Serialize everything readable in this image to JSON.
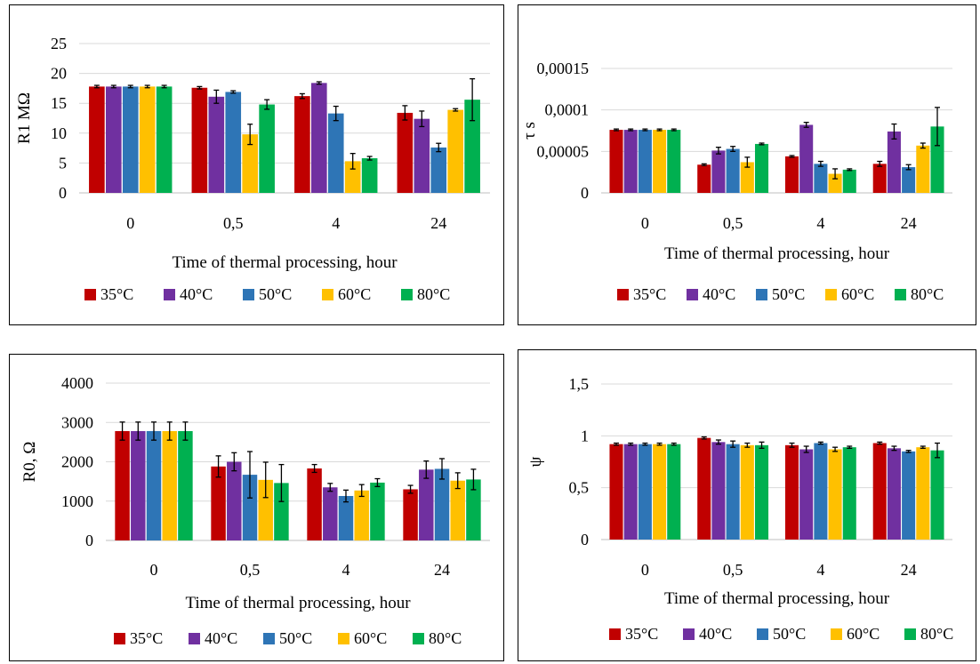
{
  "colors": {
    "35": "#c00000",
    "40": "#7030a0",
    "50": "#2e75b6",
    "60": "#ffc000",
    "80": "#00b050"
  },
  "chart_data": [
    {
      "type": "bar",
      "title": "",
      "xlabel": "Time of thermal processing, hour",
      "ylabel": "R1 MΩ",
      "categories": [
        "0",
        "0,5",
        "4",
        "24"
      ],
      "ylim": [
        0,
        25
      ],
      "yticks": [
        "0",
        "5",
        "10",
        "15",
        "20",
        "25"
      ],
      "legend_position": "bottom",
      "grid": true,
      "series": [
        {
          "name": "35°C",
          "color_key": "35",
          "values": [
            17.8,
            17.6,
            16.2,
            13.4
          ],
          "errors": [
            0.2,
            0.2,
            0.4,
            1.2
          ]
        },
        {
          "name": "40°C",
          "color_key": "40",
          "values": [
            17.8,
            16.1,
            18.4,
            12.4
          ],
          "errors": [
            0.2,
            1.1,
            0.2,
            1.3
          ]
        },
        {
          "name": "50°C",
          "color_key": "50",
          "values": [
            17.8,
            16.9,
            13.3,
            7.6
          ],
          "errors": [
            0.2,
            0.2,
            1.2,
            0.7
          ]
        },
        {
          "name": "60°C",
          "color_key": "60",
          "values": [
            17.8,
            9.8,
            5.3,
            13.9
          ],
          "errors": [
            0.2,
            1.7,
            1.3,
            0.2
          ]
        },
        {
          "name": "80°C",
          "color_key": "80",
          "values": [
            17.8,
            14.8,
            5.8,
            15.6
          ],
          "errors": [
            0.2,
            0.8,
            0.3,
            3.5
          ]
        }
      ]
    },
    {
      "type": "bar",
      "title": "",
      "xlabel": "Time of thermal processing, hour",
      "ylabel": "τ s",
      "categories": [
        "0",
        "0,5",
        "4",
        "24"
      ],
      "ylim": [
        0,
        0.00015
      ],
      "yticks": [
        "0",
        "0,00005",
        "0,0001",
        "0,00015"
      ],
      "legend_position": "bottom",
      "grid": true,
      "series": [
        {
          "name": "35°C",
          "color_key": "35",
          "values": [
            7.6e-05,
            3.4e-05,
            4.4e-05,
            3.5e-05
          ],
          "errors": [
            1e-06,
            1e-06,
            1e-06,
            3e-06
          ]
        },
        {
          "name": "40°C",
          "color_key": "40",
          "values": [
            7.6e-05,
            5.1e-05,
            8.2e-05,
            7.4e-05
          ],
          "errors": [
            1e-06,
            4e-06,
            3e-06,
            9e-06
          ]
        },
        {
          "name": "50°C",
          "color_key": "50",
          "values": [
            7.6e-05,
            5.3e-05,
            3.5e-05,
            3.1e-05
          ],
          "errors": [
            1e-06,
            3e-06,
            3e-06,
            3e-06
          ]
        },
        {
          "name": "60°C",
          "color_key": "60",
          "values": [
            7.6e-05,
            3.7e-05,
            2.3e-05,
            5.7e-05
          ],
          "errors": [
            1e-06,
            6e-06,
            6e-06,
            3e-06
          ]
        },
        {
          "name": "80°C",
          "color_key": "80",
          "values": [
            7.6e-05,
            5.9e-05,
            2.8e-05,
            8e-05
          ],
          "errors": [
            1e-06,
            1e-06,
            1e-06,
            2.3e-05
          ]
        }
      ]
    },
    {
      "type": "bar",
      "title": "",
      "xlabel": "Time of thermal processing, hour",
      "ylabel": "R0, Ω",
      "categories": [
        "0",
        "0,5",
        "4",
        "24"
      ],
      "ylim": [
        0,
        4000
      ],
      "yticks": [
        "0",
        "1000",
        "2000",
        "3000",
        "4000"
      ],
      "legend_position": "bottom",
      "grid": true,
      "series": [
        {
          "name": "35°C",
          "color_key": "35",
          "values": [
            2780,
            1880,
            1830,
            1300
          ],
          "errors": [
            230,
            270,
            100,
            100
          ]
        },
        {
          "name": "40°C",
          "color_key": "40",
          "values": [
            2780,
            2000,
            1350,
            1800
          ],
          "errors": [
            230,
            230,
            100,
            220
          ]
        },
        {
          "name": "50°C",
          "color_key": "50",
          "values": [
            2780,
            1670,
            1130,
            1820
          ],
          "errors": [
            230,
            590,
            150,
            260
          ]
        },
        {
          "name": "60°C",
          "color_key": "60",
          "values": [
            2780,
            1540,
            1270,
            1520
          ],
          "errors": [
            230,
            450,
            150,
            200
          ]
        },
        {
          "name": "80°C",
          "color_key": "80",
          "values": [
            2780,
            1460,
            1470,
            1550
          ],
          "errors": [
            230,
            470,
            100,
            260
          ]
        }
      ]
    },
    {
      "type": "bar",
      "title": "",
      "xlabel": "Time of thermal processing, hour",
      "ylabel": "ψ",
      "categories": [
        "0",
        "0,5",
        "4",
        "24"
      ],
      "ylim": [
        0,
        1.5
      ],
      "yticks": [
        "0",
        "0,5",
        "1",
        "1,5"
      ],
      "legend_position": "bottom",
      "grid": true,
      "series": [
        {
          "name": "35°C",
          "color_key": "35",
          "values": [
            0.92,
            0.98,
            0.91,
            0.93
          ],
          "errors": [
            0.01,
            0.01,
            0.02,
            0.01
          ]
        },
        {
          "name": "40°C",
          "color_key": "40",
          "values": [
            0.92,
            0.94,
            0.87,
            0.88
          ],
          "errors": [
            0.01,
            0.02,
            0.03,
            0.02
          ]
        },
        {
          "name": "50°C",
          "color_key": "50",
          "values": [
            0.92,
            0.92,
            0.93,
            0.85
          ],
          "errors": [
            0.01,
            0.03,
            0.01,
            0.01
          ]
        },
        {
          "name": "60°C",
          "color_key": "60",
          "values": [
            0.92,
            0.91,
            0.87,
            0.89
          ],
          "errors": [
            0.01,
            0.02,
            0.02,
            0.01
          ]
        },
        {
          "name": "80°C",
          "color_key": "80",
          "values": [
            0.92,
            0.91,
            0.89,
            0.86
          ],
          "errors": [
            0.01,
            0.03,
            0.01,
            0.07
          ]
        }
      ]
    }
  ]
}
